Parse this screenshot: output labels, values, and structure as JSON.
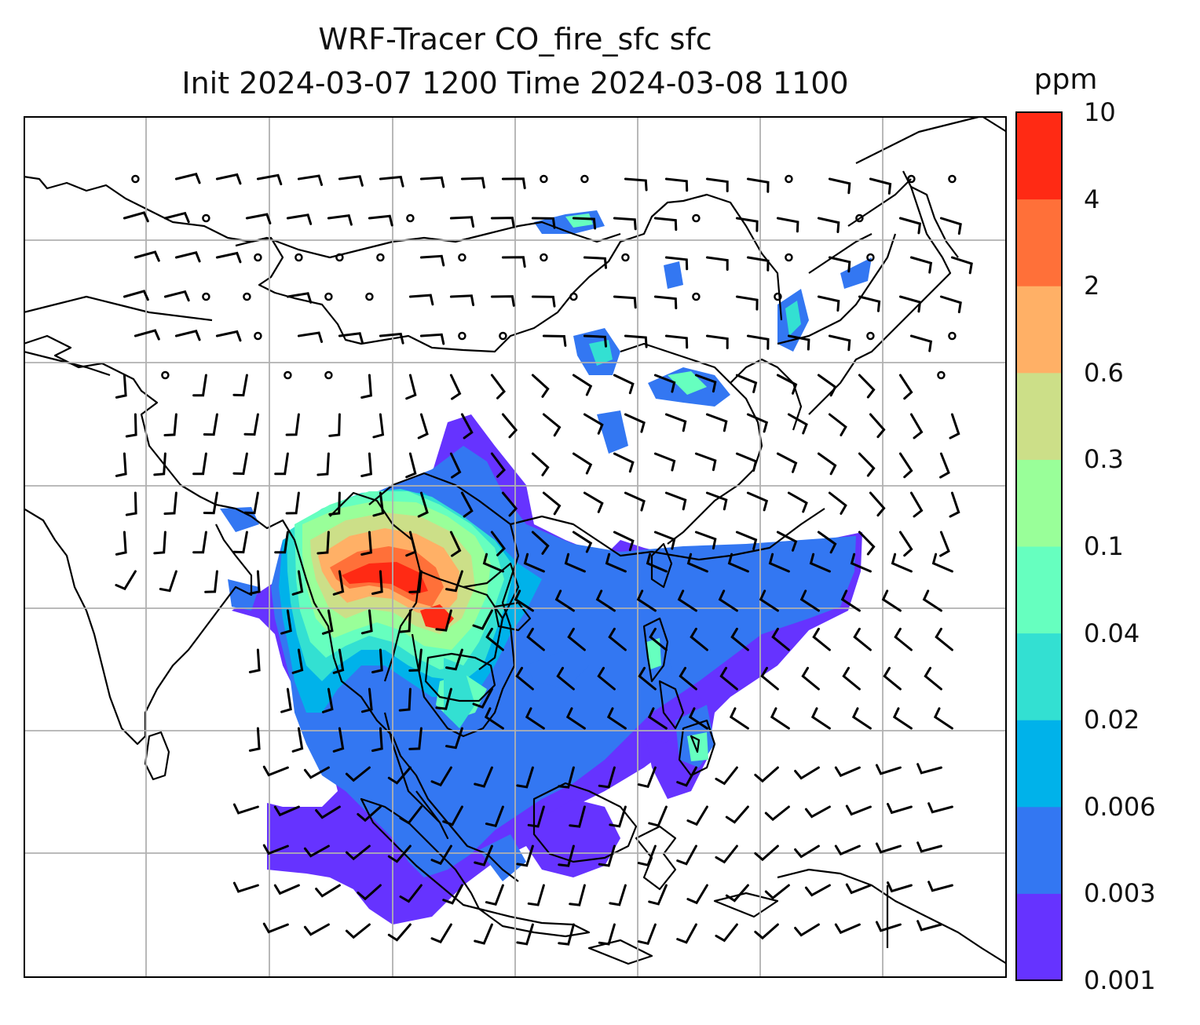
{
  "title": {
    "line1": "WRF-Tracer CO_fire_sfc sfc",
    "line2": "Init 2024-03-07 1200 Time 2024-03-08 1100"
  },
  "colorbar": {
    "unit": "ppm",
    "ticks": [
      "0.001",
      "0.003",
      "0.006",
      "0.02",
      "0.04",
      "0.1",
      "0.3",
      "0.6",
      "2",
      "4",
      "10"
    ],
    "colors": [
      "#6633ff",
      "#3377f2",
      "#00b2ea",
      "#33e0d2",
      "#66ffbf",
      "#99ff99",
      "#ccdf88",
      "#ffb066",
      "#ff7039",
      "#ff2a14"
    ]
  },
  "map": {
    "grid": "on",
    "coastline_color": "#000000",
    "grid_color": "#b0b0b0"
  }
}
